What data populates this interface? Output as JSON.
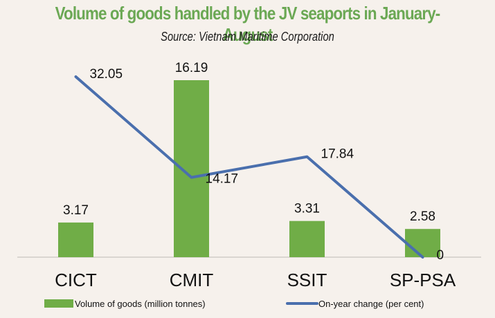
{
  "chart_data": {
    "type": "bar",
    "title": "Volume of goods handled by the JV seaports in January-August",
    "subtitle": "Source: Vietnam Maritime Corporation",
    "categories": [
      "CICT",
      "CMIT",
      "SSIT",
      "SP-PSA"
    ],
    "series": [
      {
        "name": "Volume of goods (million tonnes)",
        "type": "bar",
        "color": "#70ad47",
        "values": [
          3.17,
          16.19,
          3.31,
          2.58
        ]
      },
      {
        "name": "On-year change (per cent)",
        "type": "line",
        "color": "#4a6fad",
        "values": [
          32.05,
          14.17,
          17.84,
          0
        ]
      }
    ],
    "data_labels": {
      "bars": [
        "3.17",
        "16.19",
        "3.31",
        "2.58"
      ],
      "line": [
        "32.05",
        "14.17",
        "17.84",
        "0"
      ]
    },
    "xlabel": "",
    "ylabel": "",
    "grid": false,
    "legend_position": "bottom"
  }
}
